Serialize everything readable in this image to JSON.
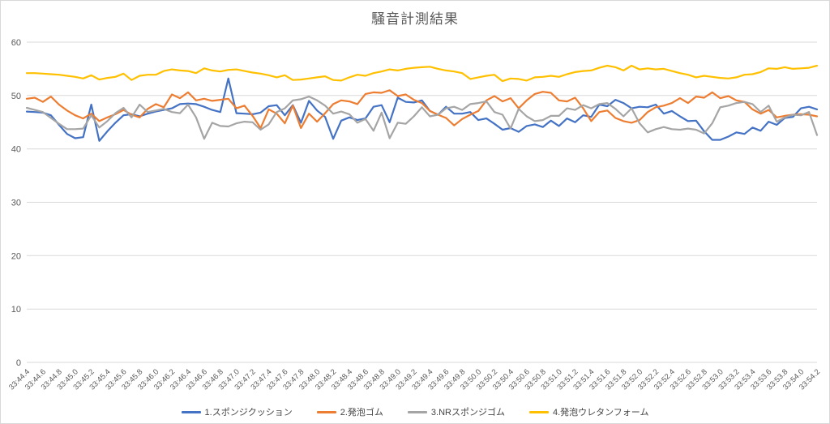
{
  "window": {
    "background": "#ffffff",
    "frame_border_color": "#d9d9d9"
  },
  "chart_data": {
    "type": "line",
    "title": "騒音計測結果",
    "xlabel": "",
    "ylabel": "",
    "ylim": [
      0,
      60
    ],
    "y_ticks": [
      0,
      10,
      20,
      30,
      40,
      50,
      60
    ],
    "grid": "horizontal",
    "grid_color": "#d9d9d9",
    "axis_text_color": "#595959",
    "legend_position": "bottom",
    "points_per_label": 2,
    "x_labels": [
      "33:44.4",
      "33:44.6",
      "33:44.8",
      "33:45.0",
      "33:45.2",
      "33:45.4",
      "33:45.6",
      "33:45.8",
      "33:46.0",
      "33:46.2",
      "33:46.4",
      "33:46.6",
      "33:46.8",
      "33:47.0",
      "33:47.2",
      "33:47.4",
      "33:47.6",
      "33:47.8",
      "33:48.0",
      "33:48.2",
      "33:48.4",
      "33:48.6",
      "33:48.8",
      "33:49.0",
      "33:49.2",
      "33:49.4",
      "33:49.6",
      "33:49.8",
      "33:50.0",
      "33:50.2",
      "33:50.4",
      "33:50.6",
      "33:50.8",
      "33:51.0",
      "33:51.2",
      "33:51.4",
      "33:51.6",
      "33:51.8",
      "33:52.0",
      "33:52.2",
      "33:52.4",
      "33:52.6",
      "33:52.8",
      "33:53.0",
      "33:53.2",
      "33:53.4",
      "33:53.6",
      "33:53.8",
      "33:54.0",
      "33:54.2"
    ],
    "series": [
      {
        "name": "1.スポンジクッション",
        "color": "#4472C4",
        "values": [
          47.0,
          46.9,
          46.8,
          46.3,
          44.5,
          42.8,
          42.0,
          42.2,
          48.3,
          41.5,
          43.3,
          44.9,
          46.3,
          46.5,
          46.1,
          46.6,
          47.0,
          47.3,
          47.6,
          48.4,
          48.5,
          48.4,
          47.9,
          47.3,
          46.9,
          53.2,
          46.7,
          46.6,
          46.5,
          46.8,
          48.0,
          48.2,
          46.3,
          48.2,
          44.9,
          49.0,
          47.2,
          46.0,
          41.9,
          45.3,
          45.9,
          45.4,
          45.7,
          47.9,
          48.2,
          45.0,
          49.6,
          48.8,
          48.7,
          49.1,
          47.1,
          46.4,
          47.9,
          46.6,
          46.6,
          46.9,
          45.4,
          45.7,
          44.7,
          43.6,
          43.9,
          43.2,
          44.3,
          44.6,
          44.1,
          45.3,
          44.3,
          45.7,
          45.0,
          46.3,
          46.0,
          48.3,
          48.0,
          49.2,
          48.6,
          47.6,
          47.9,
          47.8,
          48.3,
          46.6,
          47.1,
          46.1,
          45.2,
          45.3,
          43.3,
          41.7,
          41.7,
          42.3,
          43.1,
          42.8,
          44.0,
          43.4,
          45.1,
          44.5,
          45.8,
          46.0,
          47.6,
          47.9,
          47.4
        ]
      },
      {
        "name": "2.発泡ゴム",
        "color": "#ED7D31",
        "values": [
          49.4,
          49.6,
          48.8,
          49.8,
          48.3,
          47.2,
          46.3,
          45.7,
          46.6,
          45.2,
          45.9,
          46.5,
          47.3,
          46.4,
          45.9,
          47.5,
          48.4,
          47.8,
          50.2,
          49.5,
          50.6,
          49.1,
          49.4,
          49.0,
          49.2,
          49.4,
          47.6,
          48.1,
          46.2,
          43.9,
          47.4,
          46.6,
          44.8,
          48.1,
          43.9,
          46.6,
          45.1,
          46.7,
          48.4,
          49.1,
          48.9,
          48.4,
          50.3,
          50.6,
          50.5,
          51.0,
          49.9,
          50.2,
          49.2,
          48.6,
          47.1,
          46.4,
          45.8,
          44.4,
          45.6,
          46.4,
          47.1,
          49.1,
          49.9,
          48.9,
          49.5,
          47.6,
          49.1,
          50.3,
          50.7,
          50.5,
          49.1,
          48.9,
          49.6,
          47.6,
          45.2,
          46.9,
          47.2,
          45.8,
          45.2,
          44.9,
          45.4,
          46.9,
          47.8,
          48.1,
          48.6,
          49.5,
          48.6,
          49.8,
          49.6,
          50.6,
          49.5,
          49.9,
          49.1,
          48.8,
          47.4,
          46.6,
          47.3,
          45.9,
          46.2,
          46.4,
          46.5,
          46.4,
          46.1
        ]
      },
      {
        "name": "3.NRスポンジゴム",
        "color": "#A5A5A5",
        "values": [
          47.7,
          47.3,
          46.9,
          45.8,
          44.7,
          43.7,
          43.7,
          43.8,
          46.3,
          44.0,
          45.2,
          46.7,
          47.7,
          45.9,
          48.3,
          46.9,
          47.2,
          47.5,
          46.9,
          46.7,
          48.3,
          45.9,
          41.9,
          44.9,
          44.3,
          44.2,
          44.8,
          45.1,
          45.0,
          43.6,
          44.6,
          46.9,
          47.6,
          49.1,
          49.3,
          49.8,
          49.1,
          48.1,
          46.6,
          47.0,
          46.5,
          44.9,
          45.6,
          43.4,
          46.8,
          42.0,
          44.9,
          44.7,
          46.1,
          47.8,
          46.1,
          46.4,
          47.6,
          47.9,
          47.3,
          48.4,
          48.6,
          48.9,
          46.9,
          46.4,
          43.8,
          47.5,
          46.1,
          45.2,
          45.4,
          46.2,
          46.2,
          47.6,
          47.3,
          48.2,
          47.6,
          48.4,
          48.6,
          47.5,
          46.1,
          47.6,
          44.8,
          43.1,
          43.7,
          44.1,
          43.7,
          43.6,
          43.8,
          43.6,
          42.9,
          44.8,
          47.8,
          48.1,
          48.6,
          48.8,
          48.4,
          46.9,
          48.1,
          45.1,
          45.9,
          46.4,
          46.3,
          46.9,
          42.6
        ]
      },
      {
        "name": "4.発泡ウレタンフォーム",
        "color": "#FFC000",
        "values": [
          54.2,
          54.2,
          54.1,
          54.0,
          53.9,
          53.7,
          53.5,
          53.2,
          53.8,
          53.0,
          53.3,
          53.5,
          54.1,
          52.9,
          53.7,
          53.9,
          53.9,
          54.6,
          54.9,
          54.7,
          54.6,
          54.2,
          55.1,
          54.7,
          54.5,
          54.8,
          54.9,
          54.6,
          54.3,
          54.1,
          53.8,
          53.4,
          53.8,
          52.9,
          53.0,
          53.2,
          53.4,
          53.6,
          52.9,
          52.8,
          53.4,
          53.9,
          53.7,
          54.2,
          54.5,
          54.9,
          54.7,
          55.0,
          55.2,
          55.3,
          55.4,
          55.0,
          54.7,
          54.5,
          54.2,
          53.1,
          53.4,
          53.7,
          53.9,
          52.7,
          53.2,
          53.1,
          52.8,
          53.4,
          53.5,
          53.7,
          53.5,
          54.0,
          54.4,
          54.6,
          54.7,
          55.2,
          55.6,
          55.3,
          54.7,
          55.6,
          54.9,
          55.1,
          54.9,
          55.0,
          54.6,
          54.2,
          53.9,
          53.4,
          53.7,
          53.5,
          53.3,
          53.2,
          53.4,
          53.9,
          54.0,
          54.4,
          55.1,
          55.0,
          55.3,
          55.0,
          55.1,
          55.2,
          55.6
        ]
      }
    ]
  }
}
